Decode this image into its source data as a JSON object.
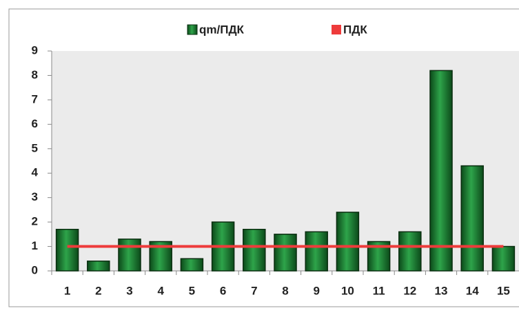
{
  "chart_data": {
    "type": "bar",
    "categories": [
      "1",
      "2",
      "3",
      "4",
      "5",
      "6",
      "7",
      "8",
      "9",
      "10",
      "11",
      "12",
      "13",
      "14",
      "15"
    ],
    "series": [
      {
        "name": "qm/ПДК",
        "color": "#1b7f34",
        "type": "bar",
        "values": [
          1.7,
          0.4,
          1.3,
          1.2,
          0.5,
          2.0,
          1.7,
          1.5,
          1.6,
          2.4,
          1.2,
          1.6,
          8.2,
          4.3,
          1.0
        ]
      },
      {
        "name": "ПДК",
        "color": "#ee3b3b",
        "type": "line",
        "values": [
          1,
          1,
          1,
          1,
          1,
          1,
          1,
          1,
          1,
          1,
          1,
          1,
          1,
          1,
          1
        ]
      }
    ],
    "ylim": [
      0,
      9
    ],
    "yticks": [
      0,
      1,
      2,
      3,
      4,
      5,
      6,
      7,
      8,
      9
    ],
    "legend": "top"
  }
}
